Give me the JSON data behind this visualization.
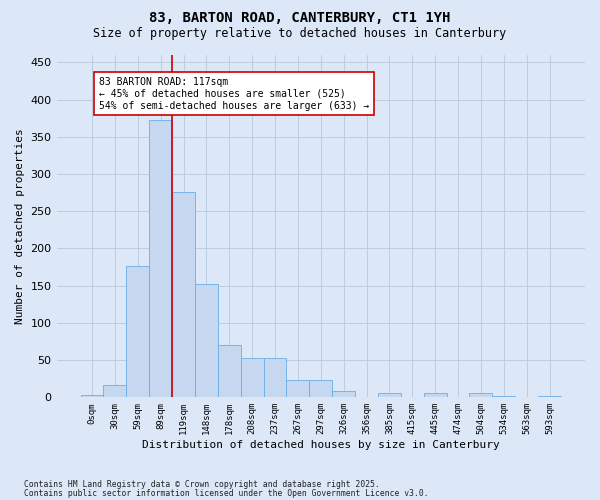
{
  "title1": "83, BARTON ROAD, CANTERBURY, CT1 1YH",
  "title2": "Size of property relative to detached houses in Canterbury",
  "xlabel": "Distribution of detached houses by size in Canterbury",
  "ylabel": "Number of detached properties",
  "bar_labels": [
    "0sqm",
    "30sqm",
    "59sqm",
    "89sqm",
    "119sqm",
    "148sqm",
    "178sqm",
    "208sqm",
    "237sqm",
    "267sqm",
    "297sqm",
    "326sqm",
    "356sqm",
    "385sqm",
    "415sqm",
    "445sqm",
    "474sqm",
    "504sqm",
    "534sqm",
    "563sqm",
    "593sqm"
  ],
  "bar_values": [
    3,
    17,
    176,
    372,
    276,
    152,
    70,
    53,
    53,
    23,
    23,
    9,
    0,
    6,
    0,
    6,
    0,
    6,
    2,
    0,
    2
  ],
  "bar_color": "#c5d8f0",
  "bar_edgecolor": "#6aaee8",
  "ylim": [
    0,
    460
  ],
  "yticks": [
    0,
    50,
    100,
    150,
    200,
    250,
    300,
    350,
    400,
    450
  ],
  "vline_color": "#cc0000",
  "annotation_text": "83 BARTON ROAD: 117sqm\n← 45% of detached houses are smaller (525)\n54% of semi-detached houses are larger (633) →",
  "annotation_box_color": "#ffffff",
  "annotation_box_edgecolor": "#cc0000",
  "footer1": "Contains HM Land Registry data © Crown copyright and database right 2025.",
  "footer2": "Contains public sector information licensed under the Open Government Licence v3.0.",
  "bg_color": "#dce8f8",
  "plot_bg_color": "#dce8f8"
}
